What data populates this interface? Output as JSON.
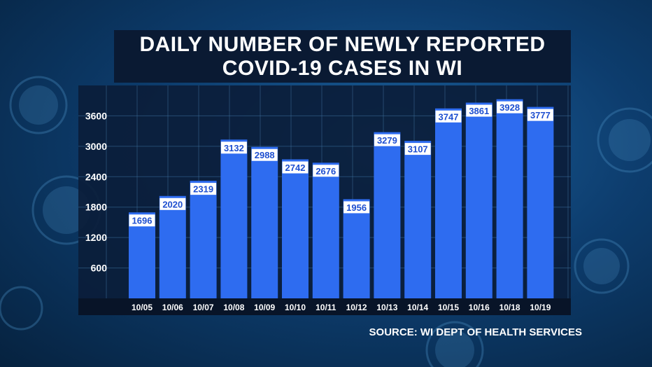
{
  "title_lines": [
    "DAILY NUMBER OF NEWLY REPORTED",
    "COVID-19 CASES IN WI"
  ],
  "source": "SOURCE: WI DEPT OF HEALTH SERVICES",
  "colors": {
    "bar": "#2e6cf0",
    "plot_bg": "#0b1d3a",
    "grid": "#3d6f9c",
    "label_box": "#ffffff",
    "label_text": "#1e4fd0",
    "text": "#ffffff"
  },
  "chart_data": {
    "type": "bar",
    "title": "DAILY NUMBER OF NEWLY REPORTED COVID-19 CASES IN WI",
    "categories": [
      "10/05",
      "10/06",
      "10/07",
      "10/08",
      "10/09",
      "10/10",
      "10/11",
      "10/12",
      "10/13",
      "10/14",
      "10/15",
      "10/16",
      "10/18",
      "10/19"
    ],
    "values": [
      1696,
      2020,
      2319,
      3132,
      2988,
      2742,
      2676,
      1956,
      3279,
      3107,
      3747,
      3861,
      3928,
      3777
    ],
    "yticks": [
      600,
      1200,
      1800,
      2400,
      3000,
      3600
    ],
    "ylim": [
      0,
      4200
    ],
    "xlabel": "",
    "ylabel": "",
    "grid": true,
    "legend": "none"
  }
}
